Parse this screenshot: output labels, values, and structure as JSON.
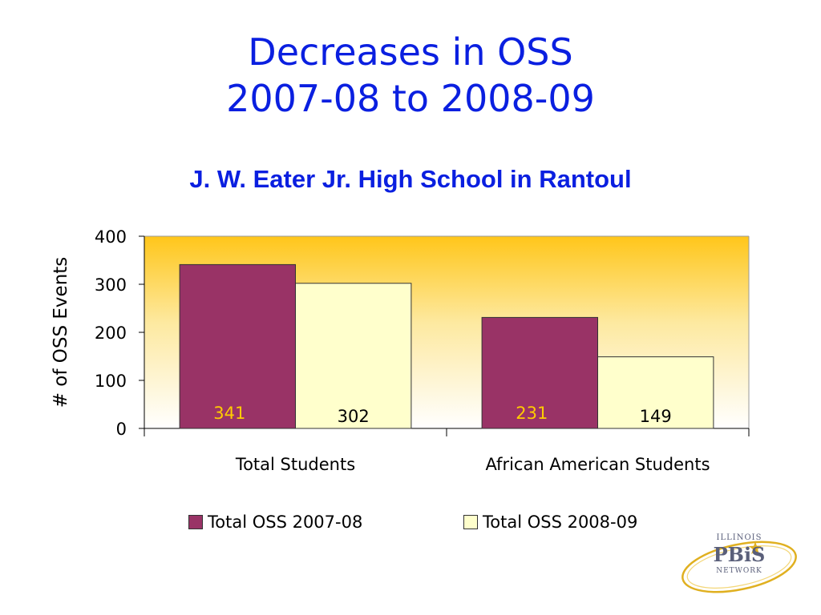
{
  "slide": {
    "title_line1": "Decreases in OSS",
    "title_line2": "2007-08 to 2008-09"
  },
  "chart_data": {
    "type": "bar",
    "title": "J. W. Eater Jr. High School in Rantoul",
    "categories": [
      "Total Students",
      "African American Students"
    ],
    "series": [
      {
        "name": "Total OSS 2007-08",
        "values": [
          341,
          231
        ],
        "color": "#993366",
        "label_color": "#ffcc00"
      },
      {
        "name": "Total OSS 2008-09",
        "values": [
          302,
          149
        ],
        "color": "#ffffcc",
        "label_color": "#000000"
      }
    ],
    "ylabel": "# of OSS Events",
    "xlabel": "",
    "ylim": [
      0,
      400
    ],
    "yticks": [
      "0",
      "100",
      "200",
      "300",
      "400"
    ],
    "grid": false,
    "legend_position": "bottom",
    "plot_background": "gradient gold to white"
  },
  "logo": {
    "line1": "ILLINOIS",
    "line2": "PBiS",
    "line3": "NETWORK",
    "color": "#5a5f7a",
    "accent": "#e0b020"
  }
}
